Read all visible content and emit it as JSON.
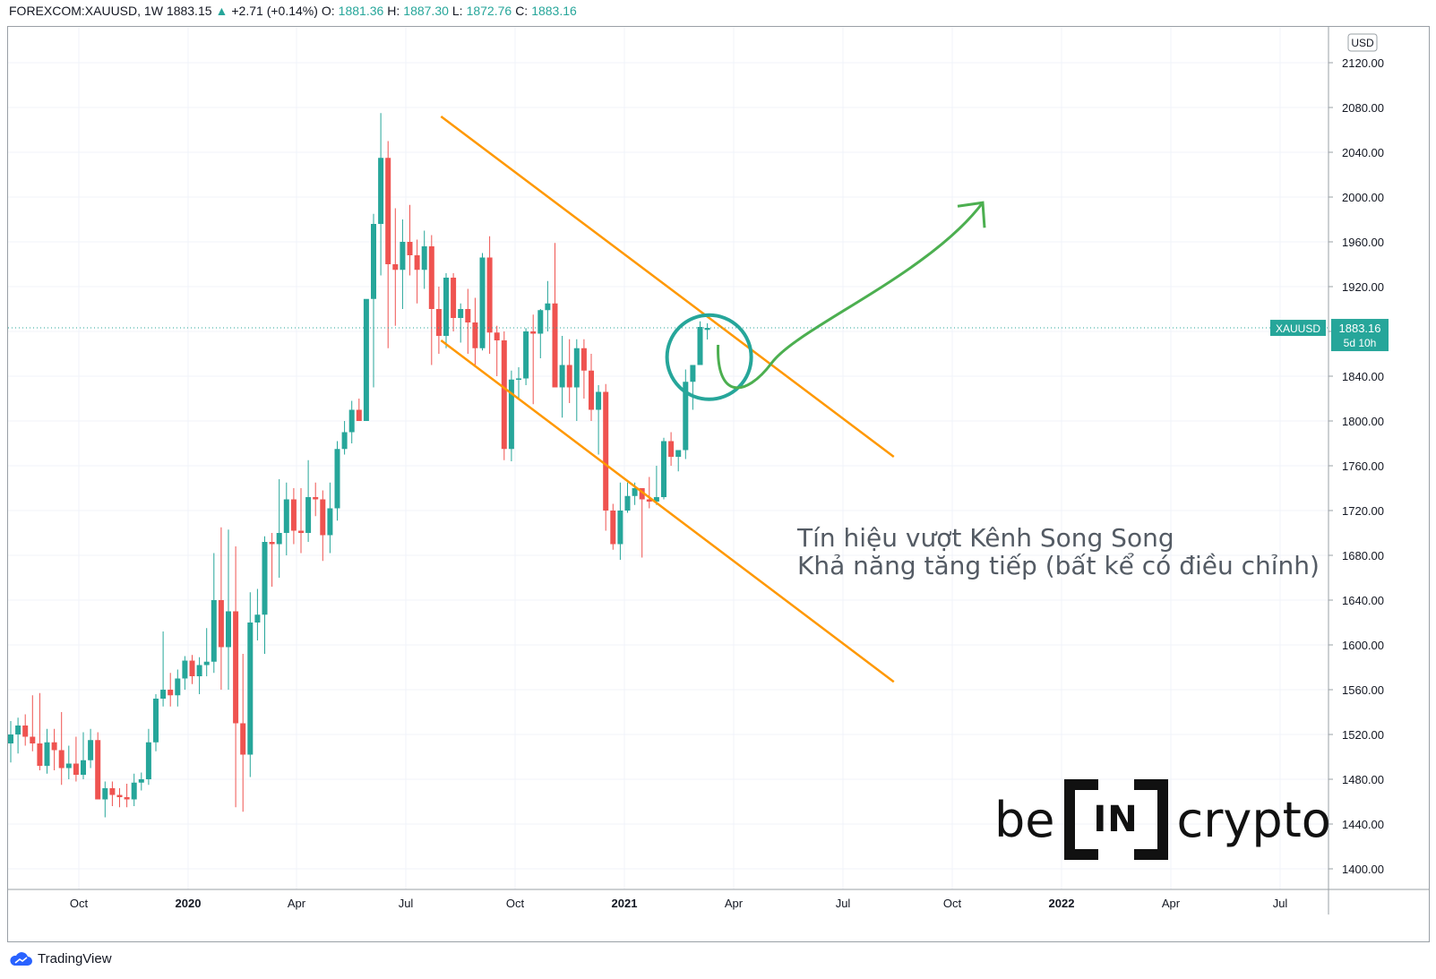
{
  "header": {
    "symbol": "FOREXCOM:XAUUSD, 1W",
    "last": "1883.15",
    "arrow": "▲",
    "change": "+2.71 (+0.14%)",
    "o_label": "O:",
    "o_val": "1881.36",
    "h_label": "H:",
    "h_val": "1887.30",
    "l_label": "L:",
    "l_val": "1872.76",
    "c_label": "C:",
    "c_val": "1883.16"
  },
  "footer": {
    "brand": "TradingView",
    "icon": "tradingview-cloud-icon"
  },
  "annotation": {
    "line1": "Tín hiệu vượt Kênh Song Song",
    "line2": "Khả năng tăng tiếp (bất kể có điều chỉnh)"
  },
  "watermark": {
    "pre": "be",
    "mid": "IN",
    "post": "crypto"
  },
  "colors": {
    "up": "#26a69a",
    "down": "#ef5350",
    "channel": "#ff9800",
    "arrow": "#4caf50",
    "circle": "#26a69a",
    "grid": "#f0f3fa"
  },
  "chart_data": {
    "type": "candlestick",
    "currency": "USD",
    "y_ticks": [
      1400,
      1440,
      1480,
      1520,
      1560,
      1600,
      1640,
      1680,
      1720,
      1760,
      1800,
      1840,
      1880,
      1920,
      1960,
      2000,
      2040,
      2080,
      2120
    ],
    "ylim": [
      1385,
      2150
    ],
    "x_labels": [
      "Oct",
      "2020",
      "Apr",
      "Jul",
      "Oct",
      "2021",
      "Apr",
      "Jul",
      "Oct",
      "2022",
      "Apr",
      "Jul"
    ],
    "price_label": {
      "name": "XAUUSD",
      "value": "1883.16",
      "countdown": "5d 10h",
      "price": 1883.16
    },
    "candles": [
      [
        1512,
        1532,
        1495,
        1520
      ],
      [
        1520,
        1535,
        1503,
        1528
      ],
      [
        1528,
        1538,
        1510,
        1518
      ],
      [
        1518,
        1555,
        1505,
        1512
      ],
      [
        1512,
        1557,
        1488,
        1492
      ],
      [
        1492,
        1525,
        1485,
        1513
      ],
      [
        1513,
        1525,
        1488,
        1506
      ],
      [
        1506,
        1540,
        1475,
        1490
      ],
      [
        1490,
        1510,
        1480,
        1494
      ],
      [
        1494,
        1518,
        1478,
        1484
      ],
      [
        1484,
        1522,
        1480,
        1497
      ],
      [
        1497,
        1525,
        1490,
        1515
      ],
      [
        1515,
        1522,
        1464,
        1462
      ],
      [
        1462,
        1478,
        1446,
        1472
      ],
      [
        1472,
        1478,
        1456,
        1466
      ],
      [
        1466,
        1472,
        1455,
        1464
      ],
      [
        1464,
        1476,
        1455,
        1462
      ],
      [
        1462,
        1485,
        1456,
        1477
      ],
      [
        1477,
        1486,
        1470,
        1480
      ],
      [
        1480,
        1525,
        1475,
        1513
      ],
      [
        1513,
        1556,
        1505,
        1552
      ],
      [
        1552,
        1612,
        1545,
        1560
      ],
      [
        1560,
        1575,
        1545,
        1555
      ],
      [
        1555,
        1578,
        1545,
        1570
      ],
      [
        1570,
        1590,
        1560,
        1586
      ],
      [
        1586,
        1591,
        1565,
        1572
      ],
      [
        1572,
        1589,
        1556,
        1582
      ],
      [
        1582,
        1615,
        1572,
        1585
      ],
      [
        1585,
        1682,
        1575,
        1640
      ],
      [
        1640,
        1705,
        1560,
        1598
      ],
      [
        1598,
        1703,
        1560,
        1630
      ],
      [
        1630,
        1688,
        1455,
        1530
      ],
      [
        1530,
        1592,
        1451,
        1502
      ],
      [
        1502,
        1647,
        1482,
        1620
      ],
      [
        1620,
        1650,
        1604,
        1627
      ],
      [
        1627,
        1697,
        1592,
        1692
      ],
      [
        1692,
        1700,
        1652,
        1690
      ],
      [
        1690,
        1748,
        1660,
        1700
      ],
      [
        1700,
        1745,
        1680,
        1730
      ],
      [
        1730,
        1740,
        1690,
        1702
      ],
      [
        1702,
        1740,
        1682,
        1700
      ],
      [
        1700,
        1765,
        1692,
        1732
      ],
      [
        1732,
        1745,
        1715,
        1730
      ],
      [
        1730,
        1738,
        1675,
        1698
      ],
      [
        1698,
        1745,
        1682,
        1722
      ],
      [
        1722,
        1782,
        1711,
        1775
      ],
      [
        1775,
        1800,
        1770,
        1790
      ],
      [
        1790,
        1818,
        1780,
        1810
      ],
      [
        1810,
        1820,
        1800,
        1800
      ],
      [
        1800,
        1905,
        1800,
        1909
      ],
      [
        1909,
        1985,
        1830,
        1976
      ],
      [
        1976,
        2075,
        1930,
        2035
      ],
      [
        2035,
        2050,
        1865,
        1940
      ],
      [
        1940,
        1990,
        1885,
        1935
      ],
      [
        1935,
        1980,
        1900,
        1960
      ],
      [
        1960,
        1993,
        1930,
        1948
      ],
      [
        1948,
        1962,
        1905,
        1935
      ],
      [
        1935,
        1970,
        1918,
        1956
      ],
      [
        1956,
        1966,
        1850,
        1900
      ],
      [
        1900,
        1920,
        1860,
        1876
      ],
      [
        1876,
        1932,
        1865,
        1928
      ],
      [
        1928,
        1932,
        1880,
        1892
      ],
      [
        1892,
        1905,
        1870,
        1900
      ],
      [
        1900,
        1918,
        1860,
        1888
      ],
      [
        1888,
        1910,
        1848,
        1865
      ],
      [
        1865,
        1950,
        1863,
        1946
      ],
      [
        1946,
        1965,
        1860,
        1879
      ],
      [
        1879,
        1885,
        1840,
        1872
      ],
      [
        1872,
        1880,
        1765,
        1775
      ],
      [
        1775,
        1845,
        1764,
        1837
      ],
      [
        1837,
        1848,
        1820,
        1838
      ],
      [
        1838,
        1883,
        1832,
        1880
      ],
      [
        1880,
        1895,
        1815,
        1878
      ],
      [
        1878,
        1900,
        1856,
        1899
      ],
      [
        1899,
        1925,
        1880,
        1905
      ],
      [
        1905,
        1959,
        1830,
        1830
      ],
      [
        1830,
        1876,
        1803,
        1850
      ],
      [
        1850,
        1873,
        1816,
        1830
      ],
      [
        1830,
        1873,
        1800,
        1865
      ],
      [
        1865,
        1873,
        1820,
        1845
      ],
      [
        1845,
        1860,
        1800,
        1810
      ],
      [
        1810,
        1832,
        1770,
        1826
      ],
      [
        1826,
        1833,
        1702,
        1720
      ],
      [
        1720,
        1726,
        1685,
        1690
      ],
      [
        1690,
        1745,
        1676,
        1720
      ],
      [
        1720,
        1745,
        1718,
        1733
      ],
      [
        1733,
        1745,
        1725,
        1740
      ],
      [
        1740,
        1740,
        1678,
        1730
      ],
      [
        1730,
        1750,
        1722,
        1728
      ],
      [
        1728,
        1760,
        1725,
        1732
      ],
      [
        1732,
        1785,
        1730,
        1782
      ],
      [
        1782,
        1790,
        1760,
        1768
      ],
      [
        1768,
        1770,
        1755,
        1774
      ],
      [
        1774,
        1846,
        1766,
        1835
      ],
      [
        1835,
        1850,
        1810,
        1850
      ],
      [
        1850,
        1889,
        1850,
        1884
      ],
      [
        1881.36,
        1887.3,
        1872.76,
        1883.16
      ]
    ],
    "channel_upper": {
      "start": [
        "2020-07-31",
        2072
      ],
      "end": [
        "2021-07-23",
        1768
      ]
    },
    "channel_lower": {
      "start": [
        "2020-07-31",
        1872
      ],
      "end": [
        "2021-07-23",
        1567
      ]
    },
    "projection_arrow_to": 1995,
    "grid": true
  }
}
